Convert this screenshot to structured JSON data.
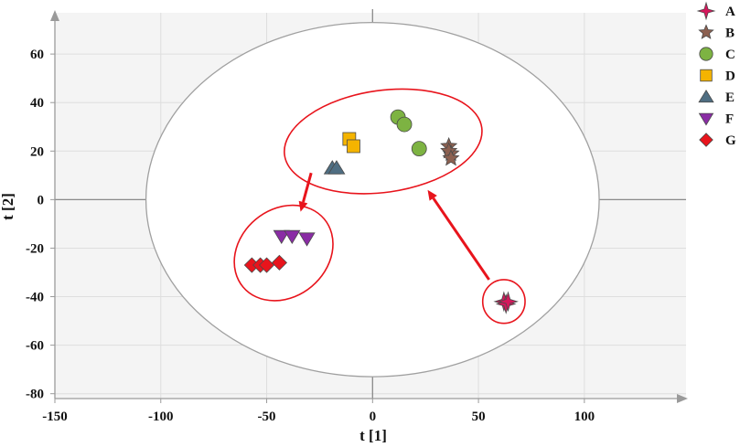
{
  "chart_data": {
    "type": "scatter",
    "title": "",
    "xlabel": "t [1]",
    "ylabel": "t [2]",
    "xlim": [
      -150,
      148
    ],
    "ylim": [
      -82,
      77
    ],
    "xticks": [
      -150,
      -100,
      -50,
      0,
      50,
      100
    ],
    "yticks": [
      -80,
      -60,
      -40,
      -20,
      0,
      20,
      40,
      60
    ],
    "grid": true,
    "legend_position": "right",
    "hotelling_ellipse": {
      "center": [
        0,
        0
      ],
      "semi_axis_x": 107,
      "semi_axis_y": 73
    },
    "series": [
      {
        "name": "A",
        "marker": "star4",
        "color": "#d6185c",
        "points": [
          [
            62,
            -42
          ],
          [
            63,
            -43
          ],
          [
            64,
            -42
          ]
        ]
      },
      {
        "name": "B",
        "marker": "star5",
        "color": "#8c6050",
        "points": [
          [
            36,
            22
          ],
          [
            37,
            19
          ],
          [
            36,
            20
          ],
          [
            37,
            17
          ]
        ]
      },
      {
        "name": "C",
        "marker": "circle",
        "color": "#7db342",
        "points": [
          [
            12,
            34
          ],
          [
            15,
            31
          ],
          [
            22,
            21
          ]
        ]
      },
      {
        "name": "D",
        "marker": "square",
        "color": "#f5b400",
        "points": [
          [
            -11,
            25
          ],
          [
            -9,
            22
          ]
        ]
      },
      {
        "name": "E",
        "marker": "triangle-up",
        "color": "#4f6e82",
        "points": [
          [
            -19,
            13
          ],
          [
            -17,
            13
          ]
        ]
      },
      {
        "name": "F",
        "marker": "triangle-down",
        "color": "#8a2ca5",
        "points": [
          [
            -43,
            -15
          ],
          [
            -38,
            -15
          ],
          [
            -31,
            -16
          ]
        ]
      },
      {
        "name": "G",
        "marker": "diamond",
        "color": "#e8141c",
        "points": [
          [
            -57,
            -27
          ],
          [
            -53,
            -27
          ],
          [
            -50,
            -27
          ],
          [
            -44,
            -26
          ]
        ]
      }
    ],
    "annotations": {
      "group_ellipses": [
        {
          "center": [
            5,
            24
          ],
          "rx": 47,
          "ry": 21,
          "rotation_deg": -8
        },
        {
          "center": [
            -42,
            -22
          ],
          "rx": 25,
          "ry": 18,
          "rotation_deg": -40
        },
        {
          "center": [
            62,
            -42
          ],
          "rx": 10,
          "ry": 9,
          "rotation_deg": 0
        }
      ],
      "arrows": [
        {
          "from": [
            -29,
            11
          ],
          "to": [
            -34,
            -5
          ]
        },
        {
          "from": [
            55,
            -33
          ],
          "to": [
            26,
            4
          ]
        }
      ],
      "color": "#e8141c"
    }
  }
}
